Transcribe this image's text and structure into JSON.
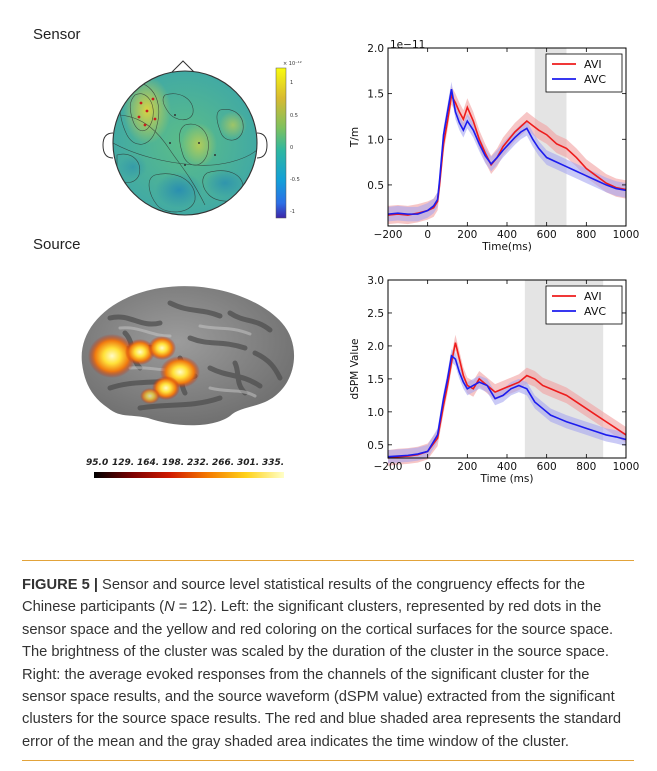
{
  "panels": {
    "sensor_label": "Sensor",
    "source_label": "Source"
  },
  "topomap": {
    "colorbar_exponent": "× 10⁻¹²",
    "colorbar_ticks": [
      "1",
      "0.5",
      "0",
      "-0.5",
      "-1"
    ]
  },
  "brain": {
    "colorbar_ticks": [
      "95.0",
      "129.",
      "164.",
      "198.",
      "232.",
      "266.",
      "301.",
      "335."
    ]
  },
  "caption": {
    "figure_label": "FIGURE 5",
    "separator": "|",
    "text_part1": " Sensor and source level statistical results of the congruency effects for the Chinese participants (",
    "n_italic": "N",
    "text_part2": " = 12). Left: the significant clusters, represented by red dots in the sensor space and the yellow and red coloring on the cortical surfaces for the source space. The brightness of the cluster was scaled by the duration of the cluster in the source space. Right: the average evoked responses from the channels of the significant cluster for the sensor space results, and the source waveform (dSPM value) extracted from the significant clusters for the source space results. The red and blue shaded area represents the standard error of the mean and the gray shaded area indicates the time window of the cluster."
  },
  "colors": {
    "avi": "#ee1c1c",
    "avc": "#1c1cee",
    "avi_band": "#f2a0a0",
    "avc_band": "#a6a6f0",
    "cluster_window": "#e4e4e4",
    "caption_rule": "#e2a33a"
  },
  "chart_data": [
    {
      "type": "line",
      "title": "",
      "offset_text": "1e−11",
      "xlabel": "Time(ms)",
      "ylabel": "T/m",
      "xlim": [
        -200,
        1000
      ],
      "ylim": [
        0.05,
        2.0
      ],
      "xticks": [
        -200,
        0,
        200,
        400,
        600,
        800,
        1000
      ],
      "xtick_labels": [
        "−200",
        "0",
        "200",
        "400",
        "600",
        "800",
        "1000"
      ],
      "yticks": [
        0.5,
        1.0,
        1.5,
        2.0
      ],
      "ytick_labels": [
        "0.5",
        "1.0",
        "1.5",
        "2.0"
      ],
      "legend_position": "top-right",
      "shaded_window": [
        540,
        700
      ],
      "series": [
        {
          "name": "AVI",
          "x": [
            -200,
            -150,
            -100,
            -50,
            0,
            30,
            50,
            60,
            80,
            100,
            120,
            140,
            160,
            180,
            200,
            230,
            260,
            290,
            320,
            350,
            380,
            410,
            440,
            470,
            500,
            530,
            560,
            600,
            650,
            700,
            750,
            800,
            850,
            900,
            950,
            1000
          ],
          "y": [
            0.17,
            0.18,
            0.17,
            0.19,
            0.22,
            0.25,
            0.32,
            0.5,
            0.95,
            1.2,
            1.48,
            1.4,
            1.3,
            1.22,
            1.35,
            1.2,
            1.0,
            0.85,
            0.72,
            0.8,
            0.92,
            1.0,
            1.08,
            1.14,
            1.2,
            1.15,
            1.1,
            1.05,
            0.95,
            0.9,
            0.8,
            0.68,
            0.6,
            0.52,
            0.47,
            0.45
          ],
          "se": 0.1
        },
        {
          "name": "AVC",
          "x": [
            -200,
            -150,
            -100,
            -50,
            0,
            30,
            50,
            60,
            80,
            100,
            120,
            140,
            160,
            180,
            200,
            230,
            260,
            290,
            320,
            350,
            380,
            410,
            440,
            470,
            500,
            530,
            560,
            600,
            650,
            700,
            750,
            800,
            850,
            900,
            950,
            1000
          ],
          "y": [
            0.18,
            0.19,
            0.18,
            0.18,
            0.22,
            0.27,
            0.34,
            0.55,
            1.05,
            1.3,
            1.55,
            1.3,
            1.18,
            1.1,
            1.2,
            1.1,
            0.95,
            0.82,
            0.73,
            0.8,
            0.88,
            0.95,
            1.02,
            1.08,
            1.12,
            1.0,
            0.9,
            0.8,
            0.75,
            0.7,
            0.65,
            0.6,
            0.55,
            0.5,
            0.46,
            0.44
          ],
          "se": 0.08
        }
      ]
    },
    {
      "type": "line",
      "title": "",
      "xlabel": "Time (ms)",
      "ylabel": "dSPM Value",
      "xlim": [
        -200,
        1000
      ],
      "ylim": [
        0.3,
        3.0
      ],
      "xticks": [
        -200,
        0,
        200,
        400,
        600,
        800,
        1000
      ],
      "xtick_labels": [
        "−200",
        "0",
        "200",
        "400",
        "600",
        "800",
        "1000"
      ],
      "yticks": [
        0.5,
        1.0,
        1.5,
        2.0,
        2.5,
        3.0
      ],
      "ytick_labels": [
        "0.5",
        "1.0",
        "1.5",
        "2.0",
        "2.5",
        "3.0"
      ],
      "legend_position": "top-right",
      "shaded_window": [
        490,
        885
      ],
      "series": [
        {
          "name": "AVI",
          "x": [
            -200,
            -150,
            -100,
            -50,
            0,
            50,
            80,
            100,
            120,
            140,
            160,
            180,
            200,
            230,
            260,
            300,
            340,
            380,
            420,
            460,
            500,
            540,
            580,
            620,
            660,
            700,
            750,
            800,
            850,
            900,
            950,
            1000
          ],
          "y": [
            0.3,
            0.32,
            0.33,
            0.35,
            0.4,
            0.6,
            1.1,
            1.4,
            1.75,
            2.05,
            1.8,
            1.55,
            1.4,
            1.35,
            1.5,
            1.4,
            1.3,
            1.35,
            1.4,
            1.45,
            1.55,
            1.5,
            1.4,
            1.35,
            1.3,
            1.25,
            1.15,
            1.05,
            0.95,
            0.85,
            0.75,
            0.65
          ],
          "se": 0.12
        },
        {
          "name": "AVC",
          "x": [
            -200,
            -150,
            -100,
            -50,
            0,
            50,
            80,
            100,
            120,
            140,
            160,
            180,
            200,
            230,
            260,
            300,
            340,
            380,
            420,
            460,
            500,
            540,
            580,
            620,
            660,
            700,
            750,
            800,
            850,
            900,
            950,
            1000
          ],
          "y": [
            0.32,
            0.33,
            0.34,
            0.36,
            0.4,
            0.65,
            1.2,
            1.5,
            1.85,
            1.8,
            1.6,
            1.45,
            1.35,
            1.4,
            1.45,
            1.4,
            1.2,
            1.25,
            1.35,
            1.4,
            1.35,
            1.15,
            1.05,
            0.95,
            0.9,
            0.85,
            0.8,
            0.75,
            0.7,
            0.65,
            0.62,
            0.58
          ],
          "se": 0.1
        }
      ]
    }
  ]
}
